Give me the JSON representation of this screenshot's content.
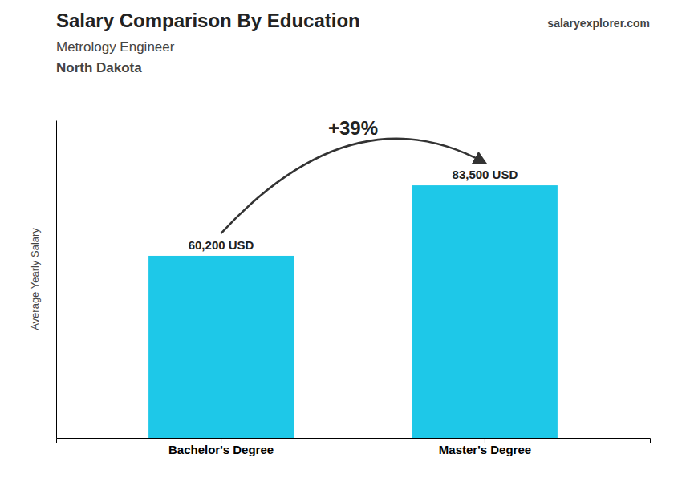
{
  "chart_data": {
    "type": "bar",
    "title": "Salary Comparison By Education",
    "subtitle": "Metrology Engineer",
    "annotations": [
      "North Dakota",
      "+39%",
      "salary",
      "explorer",
      ".com"
    ],
    "y_label": "Average Yearly Salary",
    "categories": [
      "Bachelor's Degree",
      "Master's Degree"
    ],
    "values": [
      60200,
      83500
    ],
    "value_labels": [
      "60,200 USD",
      "83,500 USD"
    ],
    "data_labels": true,
    "color": "#1EC8E8",
    "ylim": [
      0,
      105000
    ],
    "tick_labels": "x",
    "grid": false
  }
}
